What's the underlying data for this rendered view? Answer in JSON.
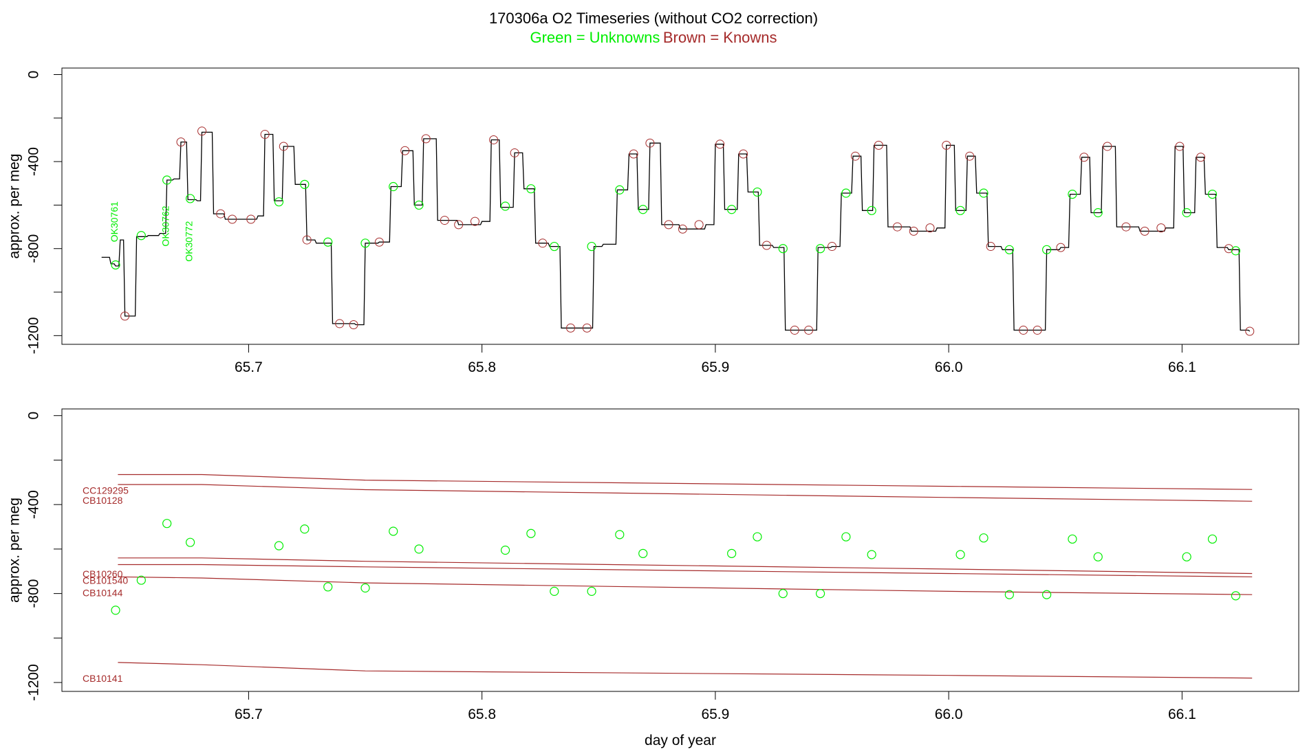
{
  "title": {
    "line1": "170306a   O2 Timeseries (without CO2 correction)",
    "legend_green": "Green = Unknowns",
    "legend_brown": "Brown = Knowns"
  },
  "colors": {
    "unknown": "#00ee00",
    "known": "#a52a2a",
    "trace": "#000000"
  },
  "chart_data": [
    {
      "type": "line",
      "xlabel": "",
      "ylabel": "approx. per meg",
      "xlim": [
        65.62,
        66.15
      ],
      "ylim": [
        -1240,
        30
      ],
      "x_ticks": [
        65.7,
        65.8,
        65.9,
        66.0,
        66.1
      ],
      "x_tick_labels": [
        "65.7",
        "65.8",
        "65.9",
        "66.0",
        "66.1"
      ],
      "y_ticks": [
        0,
        -400,
        -800,
        -1200
      ],
      "y_tick_labels": [
        "0",
        "-400",
        "-800",
        "-1200"
      ],
      "trace_steps": [
        [
          65.637,
          -840
        ],
        [
          65.641,
          -870
        ],
        [
          65.643,
          -880
        ],
        [
          65.645,
          -760
        ],
        [
          65.647,
          -1110
        ],
        [
          65.652,
          -745
        ],
        [
          65.657,
          -740
        ],
        [
          65.662,
          -730
        ],
        [
          65.665,
          -485
        ],
        [
          65.668,
          -480
        ],
        [
          65.671,
          -310
        ],
        [
          65.674,
          -575
        ],
        [
          65.678,
          -580
        ],
        [
          65.68,
          -265
        ],
        [
          65.685,
          -640
        ],
        [
          65.69,
          -665
        ],
        [
          65.7,
          -665
        ],
        [
          65.704,
          -650
        ],
        [
          65.707,
          -275
        ],
        [
          65.711,
          -580
        ],
        [
          65.715,
          -330
        ],
        [
          65.72,
          -505
        ],
        [
          65.725,
          -760
        ],
        [
          65.729,
          -775
        ],
        [
          65.736,
          -1145
        ],
        [
          65.746,
          -1150
        ],
        [
          65.75,
          -775
        ],
        [
          65.756,
          -770
        ],
        [
          65.761,
          -515
        ],
        [
          65.766,
          -350
        ],
        [
          65.771,
          -600
        ],
        [
          65.775,
          -295
        ],
        [
          65.781,
          -670
        ],
        [
          65.79,
          -690
        ],
        [
          65.8,
          -675
        ],
        [
          65.804,
          -300
        ],
        [
          65.808,
          -610
        ],
        [
          65.814,
          -360
        ],
        [
          65.818,
          -525
        ],
        [
          65.823,
          -775
        ],
        [
          65.829,
          -790
        ],
        [
          65.834,
          -1165
        ],
        [
          65.843,
          -1165
        ],
        [
          65.848,
          -790
        ],
        [
          65.852,
          -780
        ],
        [
          65.858,
          -530
        ],
        [
          65.863,
          -365
        ],
        [
          65.867,
          -620
        ],
        [
          65.872,
          -315
        ],
        [
          65.877,
          -690
        ],
        [
          65.885,
          -710
        ],
        [
          65.896,
          -690
        ],
        [
          65.9,
          -320
        ],
        [
          65.904,
          -620
        ],
        [
          65.91,
          -365
        ],
        [
          65.914,
          -540
        ],
        [
          65.919,
          -785
        ],
        [
          65.925,
          -795
        ],
        [
          65.93,
          -1175
        ],
        [
          65.94,
          -1175
        ],
        [
          65.944,
          -795
        ],
        [
          65.95,
          -790
        ],
        [
          65.954,
          -545
        ],
        [
          65.959,
          -375
        ],
        [
          65.963,
          -625
        ],
        [
          65.968,
          -325
        ],
        [
          65.974,
          -700
        ],
        [
          65.984,
          -720
        ],
        [
          65.995,
          -705
        ],
        [
          65.999,
          -325
        ],
        [
          66.003,
          -625
        ],
        [
          66.008,
          -375
        ],
        [
          66.012,
          -545
        ],
        [
          66.017,
          -790
        ],
        [
          66.023,
          -805
        ],
        [
          66.028,
          -1175
        ],
        [
          66.038,
          -1175
        ],
        [
          66.042,
          -805
        ],
        [
          66.048,
          -795
        ],
        [
          66.052,
          -550
        ],
        [
          66.057,
          -380
        ],
        [
          66.061,
          -635
        ],
        [
          66.066,
          -330
        ],
        [
          66.072,
          -700
        ],
        [
          66.082,
          -720
        ],
        [
          66.093,
          -705
        ],
        [
          66.097,
          -330
        ],
        [
          66.101,
          -635
        ],
        [
          66.106,
          -380
        ],
        [
          66.11,
          -550
        ],
        [
          66.115,
          -795
        ],
        [
          66.12,
          -805
        ],
        [
          66.125,
          -1175
        ],
        [
          66.129,
          -1180
        ]
      ],
      "known_points": [
        [
          65.647,
          -1110
        ],
        [
          65.671,
          -310
        ],
        [
          65.68,
          -260
        ],
        [
          65.688,
          -640
        ],
        [
          65.693,
          -665
        ],
        [
          65.701,
          -665
        ],
        [
          65.707,
          -275
        ],
        [
          65.715,
          -330
        ],
        [
          65.725,
          -760
        ],
        [
          65.739,
          -1145
        ],
        [
          65.745,
          -1150
        ],
        [
          65.756,
          -770
        ],
        [
          65.767,
          -350
        ],
        [
          65.776,
          -295
        ],
        [
          65.784,
          -670
        ],
        [
          65.79,
          -690
        ],
        [
          65.797,
          -675
        ],
        [
          65.805,
          -300
        ],
        [
          65.814,
          -360
        ],
        [
          65.826,
          -775
        ],
        [
          65.838,
          -1165
        ],
        [
          65.845,
          -1165
        ],
        [
          65.865,
          -365
        ],
        [
          65.872,
          -315
        ],
        [
          65.88,
          -690
        ],
        [
          65.886,
          -710
        ],
        [
          65.893,
          -690
        ],
        [
          65.902,
          -320
        ],
        [
          65.912,
          -365
        ],
        [
          65.922,
          -785
        ],
        [
          65.934,
          -1175
        ],
        [
          65.94,
          -1175
        ],
        [
          65.95,
          -790
        ],
        [
          65.96,
          -375
        ],
        [
          65.97,
          -325
        ],
        [
          65.978,
          -700
        ],
        [
          65.985,
          -720
        ],
        [
          65.992,
          -705
        ],
        [
          65.999,
          -325
        ],
        [
          66.009,
          -375
        ],
        [
          66.018,
          -790
        ],
        [
          66.032,
          -1175
        ],
        [
          66.038,
          -1175
        ],
        [
          66.048,
          -795
        ],
        [
          66.058,
          -380
        ],
        [
          66.068,
          -330
        ],
        [
          66.076,
          -700
        ],
        [
          66.084,
          -720
        ],
        [
          66.091,
          -705
        ],
        [
          66.099,
          -330
        ],
        [
          66.108,
          -380
        ],
        [
          66.12,
          -800
        ],
        [
          66.129,
          -1180
        ]
      ],
      "unknown_points": [
        [
          65.643,
          -875
        ],
        [
          65.654,
          -740
        ],
        [
          65.665,
          -485
        ],
        [
          65.675,
          -570
        ],
        [
          65.713,
          -585
        ],
        [
          65.724,
          -505
        ],
        [
          65.734,
          -770
        ],
        [
          65.75,
          -775
        ],
        [
          65.762,
          -515
        ],
        [
          65.773,
          -600
        ],
        [
          65.81,
          -605
        ],
        [
          65.821,
          -525
        ],
        [
          65.831,
          -790
        ],
        [
          65.847,
          -790
        ],
        [
          65.859,
          -530
        ],
        [
          65.869,
          -620
        ],
        [
          65.907,
          -620
        ],
        [
          65.918,
          -540
        ],
        [
          65.929,
          -800
        ],
        [
          65.945,
          -800
        ],
        [
          65.956,
          -545
        ],
        [
          65.967,
          -625
        ],
        [
          66.005,
          -625
        ],
        [
          66.015,
          -545
        ],
        [
          66.026,
          -805
        ],
        [
          66.042,
          -805
        ],
        [
          66.053,
          -550
        ],
        [
          66.064,
          -635
        ],
        [
          66.102,
          -635
        ],
        [
          66.113,
          -550
        ],
        [
          66.123,
          -810
        ]
      ],
      "annotations": [
        {
          "text": "OK30761",
          "x": 65.643,
          "y": -770
        },
        {
          "text": "OK30762",
          "x": 65.665,
          "y": -790
        },
        {
          "text": "OK30772",
          "x": 65.675,
          "y": -860
        }
      ]
    },
    {
      "type": "scatter",
      "xlabel": "day of year",
      "ylabel": "approx. per meg",
      "xlim": [
        65.62,
        66.15
      ],
      "ylim": [
        -1240,
        30
      ],
      "x_ticks": [
        65.7,
        65.8,
        65.9,
        66.0,
        66.1
      ],
      "x_tick_labels": [
        "65.7",
        "65.8",
        "65.9",
        "66.0",
        "66.1"
      ],
      "y_ticks": [
        0,
        -400,
        -800,
        -1200
      ],
      "y_tick_labels": [
        "0",
        "-400",
        "-800",
        "-1200"
      ],
      "known_lines": [
        {
          "name": "CC129295",
          "points": [
            [
              65.644,
              -265
            ],
            [
              65.68,
              -265
            ],
            [
              65.75,
              -290
            ],
            [
              66.0,
              -318
            ],
            [
              66.13,
              -332
            ]
          ]
        },
        {
          "name": "CB10128",
          "points": [
            [
              65.644,
              -310
            ],
            [
              65.68,
              -310
            ],
            [
              65.75,
              -333
            ],
            [
              66.0,
              -368
            ],
            [
              66.13,
              -385
            ]
          ]
        },
        {
          "name": "CB10260",
          "points": [
            [
              65.644,
              -640
            ],
            [
              65.68,
              -640
            ],
            [
              65.75,
              -655
            ],
            [
              66.0,
              -690
            ],
            [
              66.13,
              -710
            ]
          ]
        },
        {
          "name": "CB101540",
          "points": [
            [
              65.644,
              -670
            ],
            [
              65.68,
              -670
            ],
            [
              65.75,
              -680
            ],
            [
              66.0,
              -710
            ],
            [
              66.13,
              -725
            ]
          ]
        },
        {
          "name": "CB10144",
          "points": [
            [
              65.644,
              -725
            ],
            [
              65.68,
              -730
            ],
            [
              65.75,
              -752
            ],
            [
              66.0,
              -790
            ],
            [
              66.13,
              -805
            ]
          ]
        },
        {
          "name": "CB10141",
          "points": [
            [
              65.644,
              -1110
            ],
            [
              65.68,
              -1120
            ],
            [
              65.75,
              -1148
            ],
            [
              66.0,
              -1168
            ],
            [
              66.13,
              -1180
            ]
          ]
        }
      ],
      "unknown_points": [
        [
          65.643,
          -875
        ],
        [
          65.654,
          -740
        ],
        [
          65.665,
          -485
        ],
        [
          65.675,
          -570
        ],
        [
          65.713,
          -585
        ],
        [
          65.724,
          -510
        ],
        [
          65.734,
          -770
        ],
        [
          65.75,
          -775
        ],
        [
          65.762,
          -520
        ],
        [
          65.773,
          -600
        ],
        [
          65.81,
          -605
        ],
        [
          65.821,
          -530
        ],
        [
          65.831,
          -790
        ],
        [
          65.847,
          -790
        ],
        [
          65.859,
          -535
        ],
        [
          65.869,
          -620
        ],
        [
          65.907,
          -620
        ],
        [
          65.918,
          -545
        ],
        [
          65.929,
          -800
        ],
        [
          65.945,
          -800
        ],
        [
          65.956,
          -545
        ],
        [
          65.967,
          -625
        ],
        [
          66.005,
          -625
        ],
        [
          66.015,
          -550
        ],
        [
          66.026,
          -805
        ],
        [
          66.042,
          -805
        ],
        [
          66.053,
          -555
        ],
        [
          66.064,
          -635
        ],
        [
          66.102,
          -635
        ],
        [
          66.113,
          -555
        ],
        [
          66.123,
          -810
        ]
      ]
    }
  ]
}
